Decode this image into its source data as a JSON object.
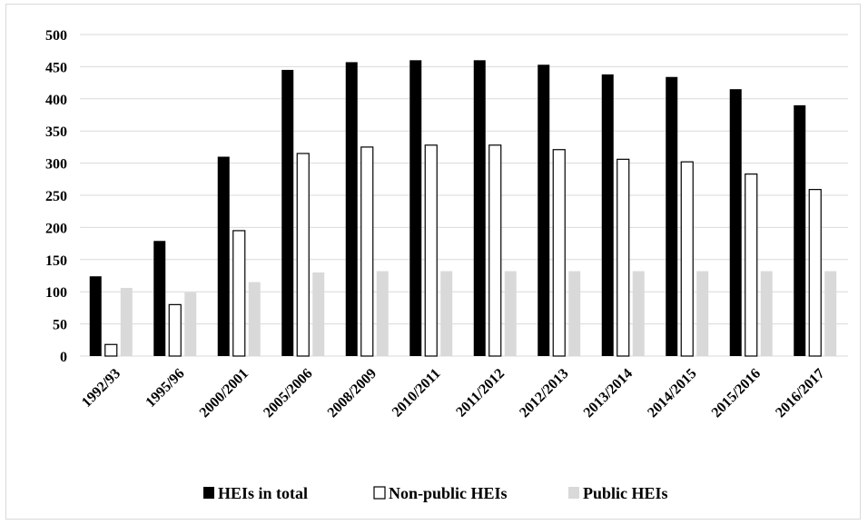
{
  "chart_data": {
    "type": "bar",
    "title": "",
    "xlabel": "",
    "ylabel": "",
    "ylim": [
      0,
      500
    ],
    "yticks": [
      "0",
      "50",
      "100",
      "150",
      "200",
      "250",
      "300",
      "350",
      "400",
      "450",
      "500"
    ],
    "grid": true,
    "legend_position": "bottom",
    "categories": [
      "1992/93",
      "1995/96",
      "2000/2001",
      "2005/2006",
      "2008/2009",
      "2010/2011",
      "2011/2012",
      "2012/2013",
      "2013/2014",
      "2014/2015",
      "2015/2016",
      "2016/2017"
    ],
    "series": [
      {
        "name": "HEIs in total",
        "color": "#000000",
        "values": [
          124,
          179,
          310,
          445,
          457,
          460,
          460,
          453,
          438,
          434,
          415,
          390
        ]
      },
      {
        "name": "Non-public HEIs",
        "color": "#ffffff",
        "values": [
          18,
          80,
          195,
          315,
          325,
          328,
          328,
          321,
          306,
          302,
          283,
          259
        ]
      },
      {
        "name": "Public HEIs",
        "color": "#d9d9d9",
        "values": [
          106,
          99,
          115,
          130,
          132,
          132,
          132,
          132,
          132,
          132,
          132,
          132
        ]
      }
    ]
  }
}
